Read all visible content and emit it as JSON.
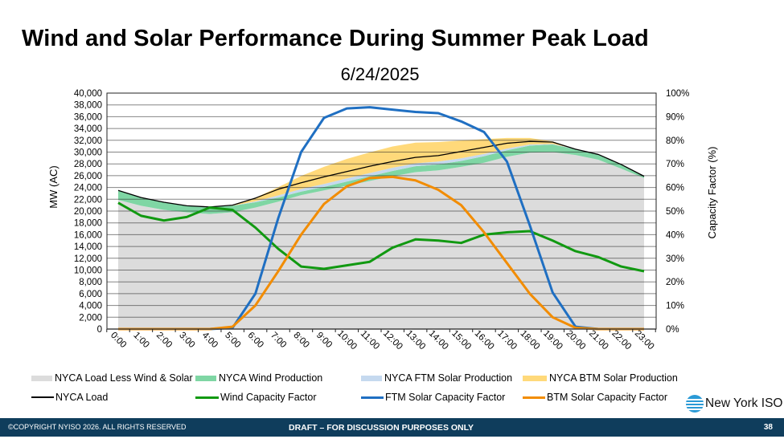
{
  "slide": {
    "title": "Wind and Solar Performance During Summer Peak Load",
    "subtitle": "6/24/2025",
    "footer_left": "©COPYRIGHT NYISO 2026. ALL RIGHTS RESERVED",
    "footer_center": "DRAFT – FOR DISCUSSION PURPOSES ONLY",
    "page_number": "38",
    "logo_text": "New York ISO"
  },
  "chart_data": {
    "type": "area",
    "title": "Wind and Solar Performance During Summer Peak Load",
    "subtitle": "6/24/2025",
    "xlabel": "",
    "ylabel": "MW (AC)",
    "y2label": "Capacity Factor (%)",
    "ylim": [
      0,
      40000
    ],
    "y2lim": [
      0,
      100
    ],
    "yticks": [
      "0",
      "2,000",
      "4,000",
      "6,000",
      "8,000",
      "10,000",
      "12,000",
      "14,000",
      "16,000",
      "18,000",
      "20,000",
      "22,000",
      "24,000",
      "26,000",
      "28,000",
      "30,000",
      "32,000",
      "34,000",
      "36,000",
      "38,000",
      "40,000"
    ],
    "y2ticks": [
      "0%",
      "10%",
      "20%",
      "30%",
      "40%",
      "50%",
      "60%",
      "70%",
      "80%",
      "90%",
      "100%"
    ],
    "grid": true,
    "legend_position": "bottom",
    "x": [
      "0:00",
      "1:00",
      "2:00",
      "3:00",
      "4:00",
      "5:00",
      "6:00",
      "7:00",
      "8:00",
      "9:00",
      "10:00",
      "11:00",
      "12:00",
      "13:00",
      "14:00",
      "15:00",
      "16:00",
      "17:00",
      "18:00",
      "19:00",
      "20:00",
      "21:00",
      "22:00",
      "23:00"
    ],
    "stacked_areas": [
      {
        "name": "NYCA Load Less Wind & Solar",
        "color": "#dcdcdc",
        "axis": "left",
        "values": [
          21900,
          20900,
          20200,
          19800,
          19500,
          19800,
          20600,
          21600,
          22700,
          23500,
          24300,
          25100,
          25900,
          26600,
          26900,
          27500,
          28200,
          29200,
          29900,
          30000,
          29500,
          28700,
          27200,
          25600
        ]
      },
      {
        "name": "NYCA Wind Production",
        "color": "#7fd6a4",
        "axis": "left",
        "values": [
          1600,
          1400,
          1300,
          1100,
          1200,
          1100,
          900,
          700,
          600,
          600,
          700,
          800,
          900,
          1000,
          1000,
          1000,
          1100,
          1100,
          1200,
          1300,
          1000,
          900,
          700,
          300
        ]
      },
      {
        "name": "NYCA FTM Solar Production",
        "color": "#c5d9ef",
        "axis": "left",
        "values": [
          0,
          0,
          0,
          0,
          0,
          10,
          150,
          350,
          450,
          500,
          550,
          550,
          550,
          500,
          500,
          450,
          400,
          300,
          200,
          100,
          20,
          0,
          0,
          0
        ]
      },
      {
        "name": "NYCA BTM Solar Production",
        "color": "#ffd97a",
        "axis": "left",
        "values": [
          0,
          0,
          0,
          0,
          0,
          100,
          600,
          1400,
          2200,
          2900,
          3300,
          3500,
          3600,
          3500,
          3300,
          3000,
          2500,
          1800,
          1100,
          400,
          30,
          0,
          0,
          0
        ]
      }
    ],
    "series": [
      {
        "name": "NYCA Load",
        "color": "#000000",
        "axis": "left",
        "values": [
          23500,
          22300,
          21500,
          20900,
          20700,
          21000,
          22200,
          23700,
          24800,
          25800,
          26700,
          27600,
          28400,
          29100,
          29400,
          30100,
          30800,
          31500,
          31800,
          31700,
          30500,
          29600,
          27900,
          25900
        ]
      },
      {
        "name": "Wind Capacity Factor",
        "color": "#119911",
        "axis": "right",
        "values": [
          53.5,
          48,
          46,
          47.5,
          51.5,
          50.5,
          43,
          34,
          26.5,
          25.5,
          27,
          28.5,
          34.5,
          38,
          37.5,
          36.5,
          40,
          41,
          41.5,
          37.5,
          33,
          30.5,
          26.5,
          24.5
        ]
      },
      {
        "name": "FTM Solar Capacity Factor",
        "color": "#1f6fc2",
        "axis": "right",
        "values": [
          0,
          0,
          0,
          0,
          0,
          0.5,
          15,
          47,
          75,
          89.5,
          93.5,
          94,
          93,
          92,
          91.5,
          88,
          83.5,
          71,
          44,
          15.5,
          1,
          0,
          0,
          0
        ]
      },
      {
        "name": "BTM Solar Capacity Factor",
        "color": "#f28c00",
        "axis": "right",
        "values": [
          0,
          0,
          0,
          0,
          0,
          1,
          10,
          24.5,
          40,
          53,
          60.5,
          64,
          64.5,
          63,
          59,
          52.5,
          41,
          28,
          15,
          5,
          0.5,
          0,
          0,
          0
        ]
      }
    ]
  }
}
